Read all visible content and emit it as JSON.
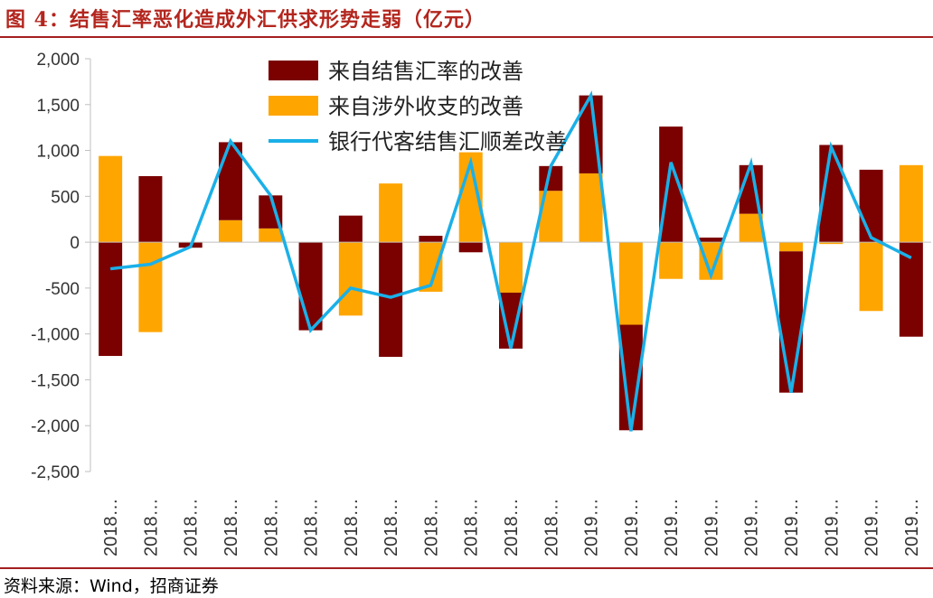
{
  "header": {
    "title": "图 4：结售汇率恶化造成外汇供求形势走弱（亿元）"
  },
  "footer": {
    "source": "资料来源：Wind，招商证券"
  },
  "colors": {
    "rate": "#7b0000",
    "trade": "#ffa500",
    "line": "#1ab0e8",
    "accent": "#a31f1f"
  },
  "chart_data": {
    "type": "bar",
    "title": "图 4：结售汇率恶化造成外汇供求形势走弱（亿元）",
    "xlabel": "",
    "ylabel": "亿元",
    "ylim": [
      -2500,
      2000
    ],
    "yticks": [
      "2,000",
      "1,500",
      "1,000",
      "500",
      "0",
      "-500",
      "-1,000",
      "-1,500",
      "-2,000",
      "-2,500"
    ],
    "ytick_values": [
      2000,
      1500,
      1000,
      500,
      0,
      -500,
      -1000,
      -1500,
      -2000,
      -2500
    ],
    "categories": [
      "2018…",
      "2018…",
      "2018…",
      "2018…",
      "2018…",
      "2018…",
      "2018…",
      "2018…",
      "2018…",
      "2018…",
      "2018…",
      "2018…",
      "2019…",
      "2019…",
      "2019…",
      "2019…",
      "2019…",
      "2019…",
      "2019…",
      "2019…",
      "2019…"
    ],
    "series": [
      {
        "name": "来自结售汇率的改善",
        "kind": "stacked-bar",
        "values": [
          -1240,
          720,
          -60,
          850,
          360,
          -960,
          290,
          -1250,
          70,
          -110,
          -610,
          270,
          850,
          -1150,
          1260,
          50,
          530,
          -1540,
          1060,
          790,
          -1030
        ]
      },
      {
        "name": "来自涉外收支的改善",
        "kind": "stacked-bar",
        "values": [
          940,
          -980,
          0,
          240,
          150,
          0,
          -800,
          640,
          -540,
          980,
          -550,
          560,
          750,
          -900,
          -400,
          -410,
          310,
          -100,
          -20,
          -750,
          840
        ]
      },
      {
        "name": "银行代客结售汇顺差改善",
        "kind": "line",
        "values": [
          -290,
          -240,
          -50,
          1100,
          510,
          -960,
          -500,
          -600,
          -470,
          870,
          -1160,
          830,
          1600,
          -2060,
          870,
          -360,
          860,
          -1640,
          1040,
          50,
          -170
        ]
      }
    ]
  }
}
